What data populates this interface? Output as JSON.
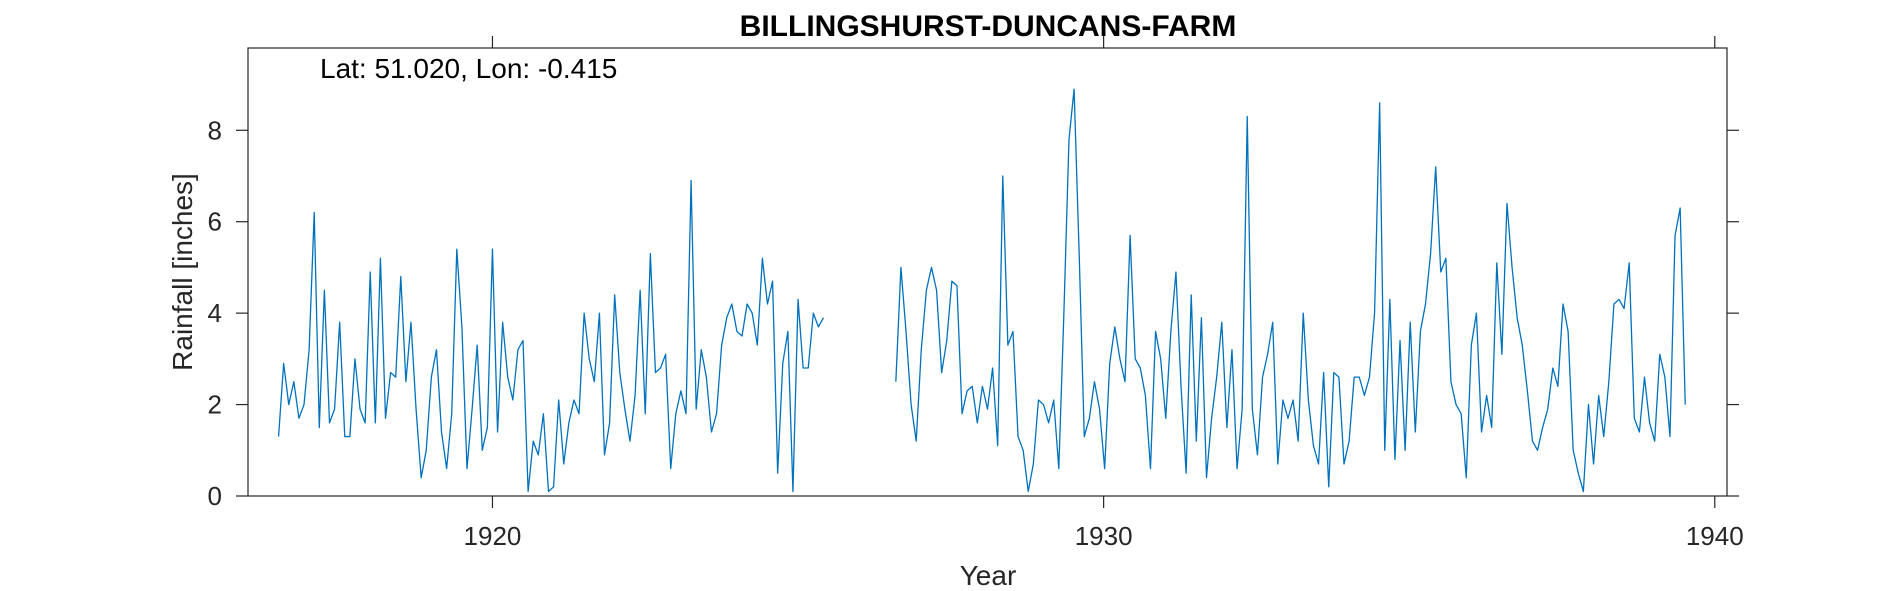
{
  "chart_data": {
    "type": "line",
    "title": "BILLINGSHURST-DUNCANS-FARM",
    "annotation": "Lat: 51.020, Lon: -0.415",
    "xlabel": "Year",
    "ylabel": "Rainfall [inches]",
    "xlim": [
      1916.0,
      1940.2
    ],
    "ylim": [
      0,
      9.8
    ],
    "xticks": [
      1920,
      1930,
      1940
    ],
    "yticks": [
      0,
      2,
      4,
      6,
      8
    ],
    "grid": false,
    "line_color": "#0072BD",
    "series": [
      {
        "segments": [
          {
            "start_year": 1916.5,
            "values": [
              1.3,
              2.9,
              2.0,
              2.5,
              1.7,
              2.0,
              3.2,
              6.2,
              1.5,
              4.5,
              1.6,
              1.9,
              3.8,
              1.3,
              1.3,
              3.0,
              1.9,
              1.6,
              4.9,
              1.6,
              5.2,
              1.7,
              2.7,
              2.6,
              4.8,
              2.5,
              3.8,
              1.9,
              0.4,
              1.0,
              2.6,
              3.2,
              1.4,
              0.6,
              1.8,
              5.4,
              3.7,
              0.6,
              1.9,
              3.3,
              1.0,
              1.5,
              5.4,
              1.4,
              3.8,
              2.6,
              2.1,
              3.2,
              3.4,
              0.1,
              1.2,
              0.9,
              1.8,
              0.1,
              0.2,
              2.1,
              0.7,
              1.6,
              2.1,
              1.8,
              4.0,
              3.0,
              2.5,
              4.0,
              0.9,
              1.6,
              4.4,
              2.7,
              1.9,
              1.2,
              2.2,
              4.5,
              1.8,
              5.3,
              2.7,
              2.8,
              3.1,
              0.6,
              1.8,
              2.3,
              1.8,
              6.9,
              1.9,
              3.2,
              2.6,
              1.4,
              1.8,
              3.3,
              3.9,
              4.2,
              3.6,
              3.5,
              4.2,
              4.0,
              3.3,
              5.2,
              4.2,
              4.7,
              0.5,
              2.9,
              3.6,
              0.1,
              4.3,
              2.8,
              2.8,
              4.0,
              3.7,
              3.9
            ]
          },
          {
            "start_year": 1926.6,
            "values": [
              2.5,
              5.0,
              3.6,
              2.0,
              1.2,
              3.2,
              4.5,
              5.0,
              4.5,
              2.7,
              3.4,
              4.7,
              4.6,
              1.8,
              2.3,
              2.4,
              1.6,
              2.4,
              1.9,
              2.8,
              1.1,
              7.0,
              3.3,
              3.6,
              1.3,
              1.0,
              0.1,
              0.7,
              2.1,
              2.0,
              1.6,
              2.1,
              0.6,
              4.0,
              7.8,
              8.9,
              5.3,
              1.3,
              1.7,
              2.5,
              1.9,
              0.6,
              2.9,
              3.7,
              3.0,
              2.5,
              5.7,
              3.0,
              2.8,
              2.2,
              0.6,
              3.6,
              3.0,
              1.7,
              3.6,
              4.9,
              2.4,
              0.5,
              4.4,
              1.2,
              3.9,
              0.4,
              1.7,
              2.6,
              3.8,
              1.5,
              3.2,
              0.6,
              1.9,
              8.3,
              1.9,
              0.9,
              2.6,
              3.1,
              3.8,
              0.7,
              2.1,
              1.7,
              2.1,
              1.2,
              4.0,
              2.1,
              1.1,
              0.7,
              2.7,
              0.2,
              2.7,
              2.6,
              0.7,
              1.2,
              2.6,
              2.6,
              2.2,
              2.6,
              4.0,
              8.6,
              1.0,
              4.3,
              0.8,
              3.4,
              1.0,
              3.8,
              1.4,
              3.6,
              4.2,
              5.3,
              7.2,
              4.9,
              5.2,
              2.5,
              2.0,
              1.8,
              0.4,
              3.3,
              4.0,
              1.4,
              2.2,
              1.5,
              5.1,
              3.1,
              6.4,
              5.0,
              3.9,
              3.3,
              2.3,
              1.2,
              1.0,
              1.5,
              1.9,
              2.8,
              2.4,
              4.2,
              3.6,
              1.0,
              0.5,
              0.1,
              2.0,
              0.7,
              2.2,
              1.3,
              2.5,
              4.2,
              4.3,
              4.1,
              5.1,
              1.7,
              1.4,
              2.6,
              1.6,
              1.2,
              3.1,
              2.6,
              1.3,
              5.7,
              6.3,
              2.0
            ]
          }
        ]
      }
    ]
  }
}
